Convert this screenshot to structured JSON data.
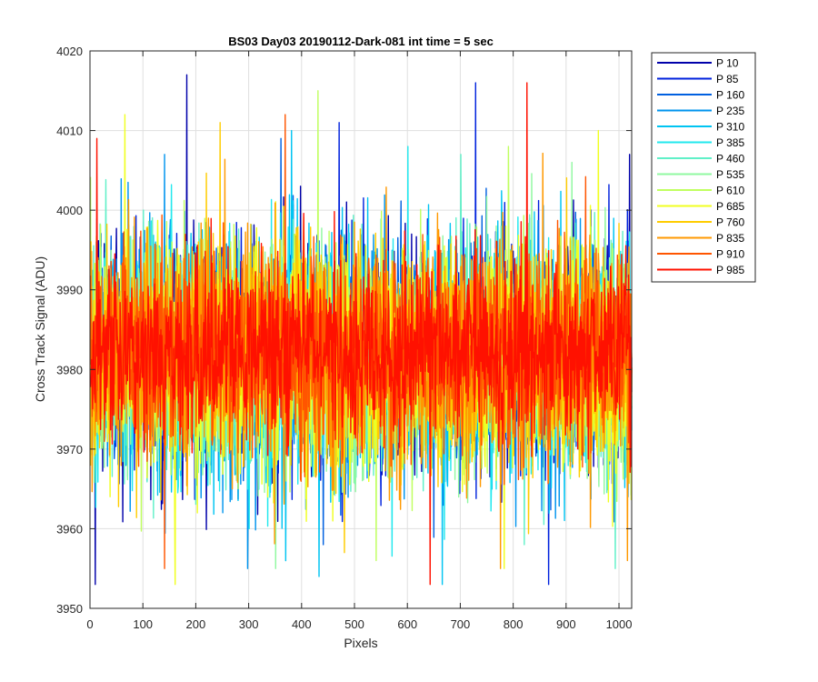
{
  "chart_data": {
    "type": "line",
    "title": "BS03 Day03 20190112-Dark-081 int time = 5 sec",
    "xlabel": "Pixels",
    "ylabel": "Cross Track Signal (ADU)",
    "xlim": [
      0,
      1024
    ],
    "ylim": [
      3950,
      4020
    ],
    "xticks": [
      0,
      100,
      200,
      300,
      400,
      500,
      600,
      700,
      800,
      900,
      1000
    ],
    "yticks": [
      3950,
      3960,
      3970,
      3980,
      3990,
      4000,
      4010,
      4020
    ],
    "grid": true,
    "legend_position": "outside-top-right",
    "n_points": 1024,
    "series": [
      {
        "name": "P 10",
        "color": "#0000AA",
        "mean": 3981.5,
        "spread": 7.0,
        "peaks": [
          [
            182,
            4017
          ],
          [
            9,
            3953
          ],
          [
            1019,
            4007
          ]
        ]
      },
      {
        "name": "P 85",
        "color": "#0022DD",
        "mean": 3981.8,
        "spread": 7.0,
        "peaks": [
          [
            728,
            4016
          ],
          [
            866,
            3953
          ],
          [
            470,
            4011
          ]
        ]
      },
      {
        "name": "P 160",
        "color": "#0060E0",
        "mean": 3981.5,
        "spread": 7.0,
        "peaks": [
          [
            360,
            4009
          ],
          [
            440,
            3958
          ]
        ]
      },
      {
        "name": "P 235",
        "color": "#0094EE",
        "mean": 3981.5,
        "spread": 7.0,
        "peaks": [
          [
            140,
            4007
          ],
          [
            250,
            3962
          ]
        ]
      },
      {
        "name": "P 310",
        "color": "#00C4F2",
        "mean": 3981.5,
        "spread": 7.0,
        "peaks": [
          [
            432,
            3954
          ],
          [
            665,
            3953
          ],
          [
            380,
            4010
          ]
        ]
      },
      {
        "name": "P 385",
        "color": "#22E8EE",
        "mean": 3981.5,
        "spread": 7.0,
        "peaks": [
          [
            600,
            4008
          ],
          [
            300,
            3960
          ]
        ]
      },
      {
        "name": "P 460",
        "color": "#60F0C8",
        "mean": 3981.5,
        "spread": 7.0,
        "peaks": [
          [
            700,
            4007
          ],
          [
            820,
            3958
          ]
        ]
      },
      {
        "name": "P 535",
        "color": "#90F8A0",
        "mean": 3981.5,
        "spread": 7.0,
        "peaks": [
          [
            350,
            3955
          ],
          [
            910,
            4006
          ]
        ]
      },
      {
        "name": "P 610",
        "color": "#C0FF60",
        "mean": 3981.5,
        "spread": 7.0,
        "peaks": [
          [
            430,
            4015
          ],
          [
            540,
            3956
          ]
        ]
      },
      {
        "name": "P 685",
        "color": "#F0FF20",
        "mean": 3981.8,
        "spread": 7.0,
        "peaks": [
          [
            65,
            4012
          ],
          [
            160,
            3953
          ],
          [
            960,
            4010
          ]
        ]
      },
      {
        "name": "P 760",
        "color": "#FFCC00",
        "mean": 3981.8,
        "spread": 7.0,
        "peaks": [
          [
            245,
            4011
          ],
          [
            480,
            3957
          ]
        ]
      },
      {
        "name": "P 835",
        "color": "#FF9900",
        "mean": 3982.0,
        "spread": 7.0,
        "peaks": [
          [
            1015,
            3956
          ],
          [
            775,
            3955
          ]
        ]
      },
      {
        "name": "P 910",
        "color": "#FF5500",
        "mean": 3982.3,
        "spread": 6.5,
        "peaks": [
          [
            368,
            4012
          ],
          [
            140,
            3955
          ]
        ]
      },
      {
        "name": "P 985",
        "color": "#FF1100",
        "mean": 3982.5,
        "spread": 5.5,
        "peaks": [
          [
            825,
            4016
          ],
          [
            12,
            4009
          ],
          [
            642,
            3953
          ]
        ]
      }
    ]
  }
}
